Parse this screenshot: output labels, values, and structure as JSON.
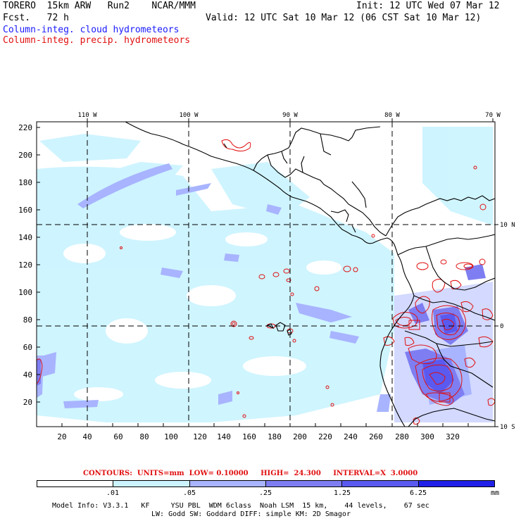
{
  "header": {
    "model": "TORERO  15km ARW   Run2    NCAR/MMM",
    "init": "Init: 12 UTC Wed 07 Mar 12",
    "fcst": "Fcst.   72 h",
    "valid": "Valid: 12 UTC Sat 10 Mar 12 (06 CST Sat 10 Mar 12)",
    "field1": "Column-integ. cloud hydrometeors",
    "field2": "Column-integ. precip. hydrometeors"
  },
  "axes": {
    "top_lon": [
      "110 W",
      "100 W",
      "90 W",
      "80 W",
      "70 W"
    ],
    "right_lat": [
      "10 N",
      "0",
      "10 S"
    ],
    "left_y": [
      "220",
      "200",
      "180",
      "160",
      "140",
      "120",
      "100",
      "80",
      "60",
      "40",
      "20"
    ],
    "bottom_x": [
      "20",
      "40",
      "60",
      "80",
      "100",
      "120",
      "140",
      "160",
      "180",
      "200",
      "220",
      "240",
      "260",
      "280",
      "300",
      "320"
    ]
  },
  "contours": {
    "units_label": "CONTOURS:  UNITS=mm  LOW= 0.10000",
    "high_label": "HIGH=  24.300",
    "interval_label": "INTERVAL=X  3.0000"
  },
  "colorbar": {
    "colors": [
      "#ffffff",
      "#ccf4ff",
      "#a8b4ff",
      "#7e7ef2",
      "#5a5af0",
      "#2020e8"
    ],
    "labels": [
      ".01",
      ".05",
      ".25",
      "1.25",
      "6.25"
    ],
    "unit": "mm"
  },
  "footer": {
    "line1": "Model Info: V3.3.1   KF     YSU PBL  WDM 6class  Noah LSM  15 km,    44 levels,    67 sec",
    "line2": "LW: Godd SW: Goddard DIFF: simple KM: 2D Smagor"
  }
}
